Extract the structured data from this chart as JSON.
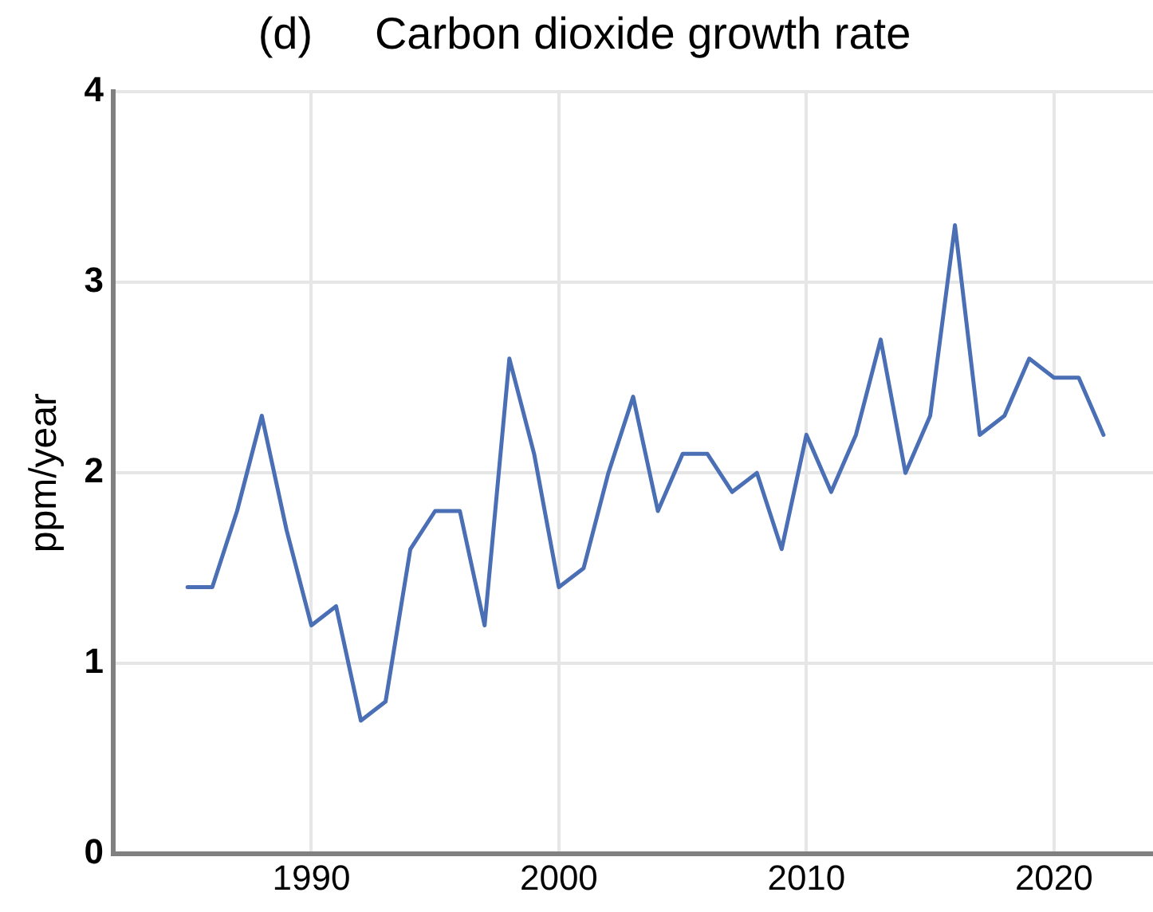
{
  "chart_data": {
    "type": "line",
    "title": "(d)     Carbon dioxide growth rate",
    "ylabel": "ppm/year",
    "x": [
      1985,
      1986,
      1987,
      1988,
      1989,
      1990,
      1991,
      1992,
      1993,
      1994,
      1995,
      1996,
      1997,
      1998,
      1999,
      2000,
      2001,
      2002,
      2003,
      2004,
      2005,
      2006,
      2007,
      2008,
      2009,
      2010,
      2011,
      2012,
      2013,
      2014,
      2015,
      2016,
      2017,
      2018,
      2019,
      2020,
      2021,
      2022
    ],
    "series": [
      {
        "color": "#4a6fb5",
        "values": [
          1.4,
          1.4,
          1.8,
          2.3,
          1.7,
          1.2,
          1.3,
          0.7,
          0.8,
          1.6,
          1.8,
          1.8,
          1.2,
          2.6,
          2.1,
          1.4,
          1.5,
          2.0,
          2.4,
          1.8,
          2.1,
          2.1,
          1.9,
          2.0,
          1.6,
          2.2,
          1.9,
          2.2,
          2.7,
          2.0,
          2.3,
          3.3,
          2.2,
          2.3,
          2.6,
          2.5,
          2.5,
          2.2
        ]
      }
    ],
    "xlim": [
      1982,
      2024
    ],
    "xticks": [
      1990,
      2000,
      2010,
      2020
    ],
    "ylim": [
      0,
      4
    ],
    "yticks": [
      0,
      1,
      2,
      3,
      4
    ],
    "grid": true,
    "marker": "none",
    "line_style": "solid",
    "legend": false
  }
}
